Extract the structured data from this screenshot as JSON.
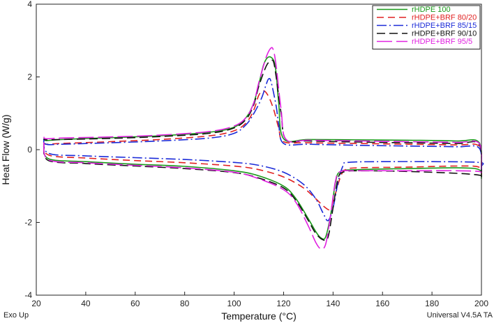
{
  "chart_data": {
    "type": "line",
    "xlabel": "Temperature (°C)",
    "ylabel": "Heat Flow (W/g)",
    "xlim": [
      20,
      200
    ],
    "ylim": [
      -4,
      4
    ],
    "xticks": [
      20,
      40,
      60,
      80,
      100,
      120,
      140,
      160,
      180,
      200
    ],
    "yticks": [
      -4,
      -2,
      0,
      2,
      4
    ],
    "grid": false,
    "legend_position": "top-right",
    "footer_left": "Exo Up",
    "footer_right": "Universal V4.5A TA",
    "series": [
      {
        "name": "rHDPE 100",
        "color": "#1a9a1a",
        "dash": "solid",
        "heating": [
          [
            23,
            0.15
          ],
          [
            25,
            -0.25
          ],
          [
            40,
            -0.33
          ],
          [
            60,
            -0.4
          ],
          [
            80,
            -0.46
          ],
          [
            100,
            -0.58
          ],
          [
            110,
            -0.72
          ],
          [
            120,
            -1.0
          ],
          [
            125,
            -1.35
          ],
          [
            130,
            -1.9
          ],
          [
            133,
            -2.25
          ],
          [
            135,
            -2.42
          ],
          [
            137,
            -2.4
          ],
          [
            139,
            -1.8
          ],
          [
            141,
            -0.9
          ],
          [
            143,
            -0.6
          ],
          [
            150,
            -0.55
          ],
          [
            170,
            -0.52
          ],
          [
            190,
            -0.5
          ],
          [
            199,
            -0.55
          ],
          [
            200,
            -0.8
          ]
        ],
        "cooling": [
          [
            200,
            -0.6
          ],
          [
            199,
            0.2
          ],
          [
            190,
            0.24
          ],
          [
            170,
            0.26
          ],
          [
            150,
            0.27
          ],
          [
            130,
            0.28
          ],
          [
            120,
            0.3
          ],
          [
            118,
            1.3
          ],
          [
            117,
            2.1
          ],
          [
            116,
            2.45
          ],
          [
            114,
            2.55
          ],
          [
            112,
            2.35
          ],
          [
            110,
            1.8
          ],
          [
            108,
            1.3
          ],
          [
            105,
            0.9
          ],
          [
            100,
            0.62
          ],
          [
            90,
            0.48
          ],
          [
            70,
            0.38
          ],
          [
            50,
            0.33
          ],
          [
            30,
            0.28
          ],
          [
            24,
            0.25
          ],
          [
            23,
            0.3
          ]
        ]
      },
      {
        "name": "rHDPE+BRF 80/20",
        "color": "#e02020",
        "dash": "10,6",
        "heating": [
          [
            23,
            0.2
          ],
          [
            25,
            -0.15
          ],
          [
            40,
            -0.23
          ],
          [
            60,
            -0.3
          ],
          [
            80,
            -0.36
          ],
          [
            100,
            -0.45
          ],
          [
            110,
            -0.55
          ],
          [
            120,
            -0.75
          ],
          [
            128,
            -1.05
          ],
          [
            133,
            -1.35
          ],
          [
            137,
            -1.6
          ],
          [
            139,
            -1.62
          ],
          [
            141,
            -1.2
          ],
          [
            143,
            -0.75
          ],
          [
            145,
            -0.55
          ],
          [
            150,
            -0.5
          ],
          [
            170,
            -0.48
          ],
          [
            190,
            -0.45
          ],
          [
            199,
            -0.48
          ],
          [
            200,
            -0.7
          ]
        ],
        "cooling": [
          [
            200,
            -0.5
          ],
          [
            199,
            0.1
          ],
          [
            190,
            0.13
          ],
          [
            170,
            0.15
          ],
          [
            150,
            0.17
          ],
          [
            130,
            0.19
          ],
          [
            120,
            0.22
          ],
          [
            118,
            0.6
          ],
          [
            116,
            1.1
          ],
          [
            114,
            1.45
          ],
          [
            112,
            1.62
          ],
          [
            110,
            1.5
          ],
          [
            108,
            1.1
          ],
          [
            105,
            0.75
          ],
          [
            100,
            0.52
          ],
          [
            90,
            0.38
          ],
          [
            70,
            0.28
          ],
          [
            50,
            0.22
          ],
          [
            30,
            0.17
          ],
          [
            24,
            0.15
          ],
          [
            23,
            0.2
          ]
        ]
      },
      {
        "name": "rHDPE+BRF 85/15",
        "color": "#1a2ad8",
        "dash": "14,4,2,4",
        "heating": [
          [
            23,
            0.3
          ],
          [
            25,
            -0.1
          ],
          [
            40,
            -0.17
          ],
          [
            60,
            -0.22
          ],
          [
            80,
            -0.27
          ],
          [
            100,
            -0.35
          ],
          [
            110,
            -0.43
          ],
          [
            120,
            -0.62
          ],
          [
            128,
            -0.95
          ],
          [
            133,
            -1.35
          ],
          [
            136,
            -1.75
          ],
          [
            138,
            -1.95
          ],
          [
            140,
            -1.6
          ],
          [
            142,
            -0.9
          ],
          [
            144,
            -0.45
          ],
          [
            146,
            -0.35
          ],
          [
            160,
            -0.33
          ],
          [
            180,
            -0.33
          ],
          [
            199,
            -0.35
          ],
          [
            200,
            -0.45
          ]
        ],
        "cooling": [
          [
            200,
            -0.6
          ],
          [
            199,
            0.05
          ],
          [
            190,
            0.08
          ],
          [
            170,
            0.1
          ],
          [
            150,
            0.12
          ],
          [
            130,
            0.15
          ],
          [
            120,
            0.17
          ],
          [
            118,
            0.7
          ],
          [
            117,
            1.2
          ],
          [
            115,
            1.85
          ],
          [
            114,
            1.95
          ],
          [
            113,
            1.8
          ],
          [
            111,
            1.4
          ],
          [
            108,
            1.0
          ],
          [
            105,
            0.7
          ],
          [
            100,
            0.45
          ],
          [
            90,
            0.32
          ],
          [
            70,
            0.24
          ],
          [
            50,
            0.19
          ],
          [
            30,
            0.15
          ],
          [
            24,
            0.15
          ],
          [
            23,
            0.3
          ]
        ]
      },
      {
        "name": "rHDPE+BRF 90/10",
        "color": "#111111",
        "dash": "12,6",
        "heating": [
          [
            23,
            0.1
          ],
          [
            25,
            -0.3
          ],
          [
            40,
            -0.38
          ],
          [
            60,
            -0.45
          ],
          [
            80,
            -0.52
          ],
          [
            100,
            -0.63
          ],
          [
            110,
            -0.78
          ],
          [
            120,
            -1.05
          ],
          [
            125,
            -1.4
          ],
          [
            130,
            -1.95
          ],
          [
            133,
            -2.3
          ],
          [
            136,
            -2.48
          ],
          [
            138,
            -2.4
          ],
          [
            140,
            -1.6
          ],
          [
            142,
            -0.8
          ],
          [
            144,
            -0.62
          ],
          [
            150,
            -0.58
          ],
          [
            170,
            -0.6
          ],
          [
            190,
            -0.65
          ],
          [
            199,
            -0.7
          ],
          [
            200,
            -0.75
          ]
        ],
        "cooling": [
          [
            200,
            -0.75
          ],
          [
            199,
            0.15
          ],
          [
            190,
            0.17
          ],
          [
            170,
            0.19
          ],
          [
            150,
            0.21
          ],
          [
            130,
            0.24
          ],
          [
            121,
            0.28
          ],
          [
            119,
            1.0
          ],
          [
            117,
            2.0
          ],
          [
            116,
            2.4
          ],
          [
            115,
            2.45
          ],
          [
            113,
            2.3
          ],
          [
            110,
            1.75
          ],
          [
            108,
            1.25
          ],
          [
            105,
            0.85
          ],
          [
            100,
            0.6
          ],
          [
            90,
            0.45
          ],
          [
            70,
            0.36
          ],
          [
            50,
            0.31
          ],
          [
            30,
            0.28
          ],
          [
            24,
            0.27
          ],
          [
            23,
            0.3
          ]
        ]
      },
      {
        "name": "rHDPE+BRF 95/5",
        "color": "#e020e0",
        "dash": "22,6",
        "heating": [
          [
            23,
            0.2
          ],
          [
            25,
            -0.28
          ],
          [
            40,
            -0.36
          ],
          [
            60,
            -0.43
          ],
          [
            80,
            -0.5
          ],
          [
            100,
            -0.62
          ],
          [
            110,
            -0.8
          ],
          [
            120,
            -1.1
          ],
          [
            125,
            -1.45
          ],
          [
            130,
            -2.1
          ],
          [
            133,
            -2.55
          ],
          [
            135,
            -2.72
          ],
          [
            137,
            -2.6
          ],
          [
            139,
            -1.8
          ],
          [
            141,
            -0.85
          ],
          [
            143,
            -0.6
          ],
          [
            150,
            -0.58
          ],
          [
            170,
            -0.58
          ],
          [
            190,
            -0.58
          ],
          [
            199,
            -0.6
          ],
          [
            200,
            -0.65
          ]
        ],
        "cooling": [
          [
            200,
            -0.55
          ],
          [
            199,
            0.18
          ],
          [
            190,
            0.2
          ],
          [
            170,
            0.22
          ],
          [
            150,
            0.24
          ],
          [
            130,
            0.26
          ],
          [
            121,
            0.28
          ],
          [
            119,
            1.1
          ],
          [
            117,
            2.3
          ],
          [
            116,
            2.7
          ],
          [
            115,
            2.8
          ],
          [
            113,
            2.55
          ],
          [
            110,
            1.85
          ],
          [
            108,
            1.3
          ],
          [
            105,
            0.9
          ],
          [
            100,
            0.65
          ],
          [
            90,
            0.5
          ],
          [
            70,
            0.4
          ],
          [
            50,
            0.35
          ],
          [
            30,
            0.32
          ],
          [
            24,
            0.3
          ],
          [
            23,
            0.35
          ]
        ]
      }
    ]
  }
}
